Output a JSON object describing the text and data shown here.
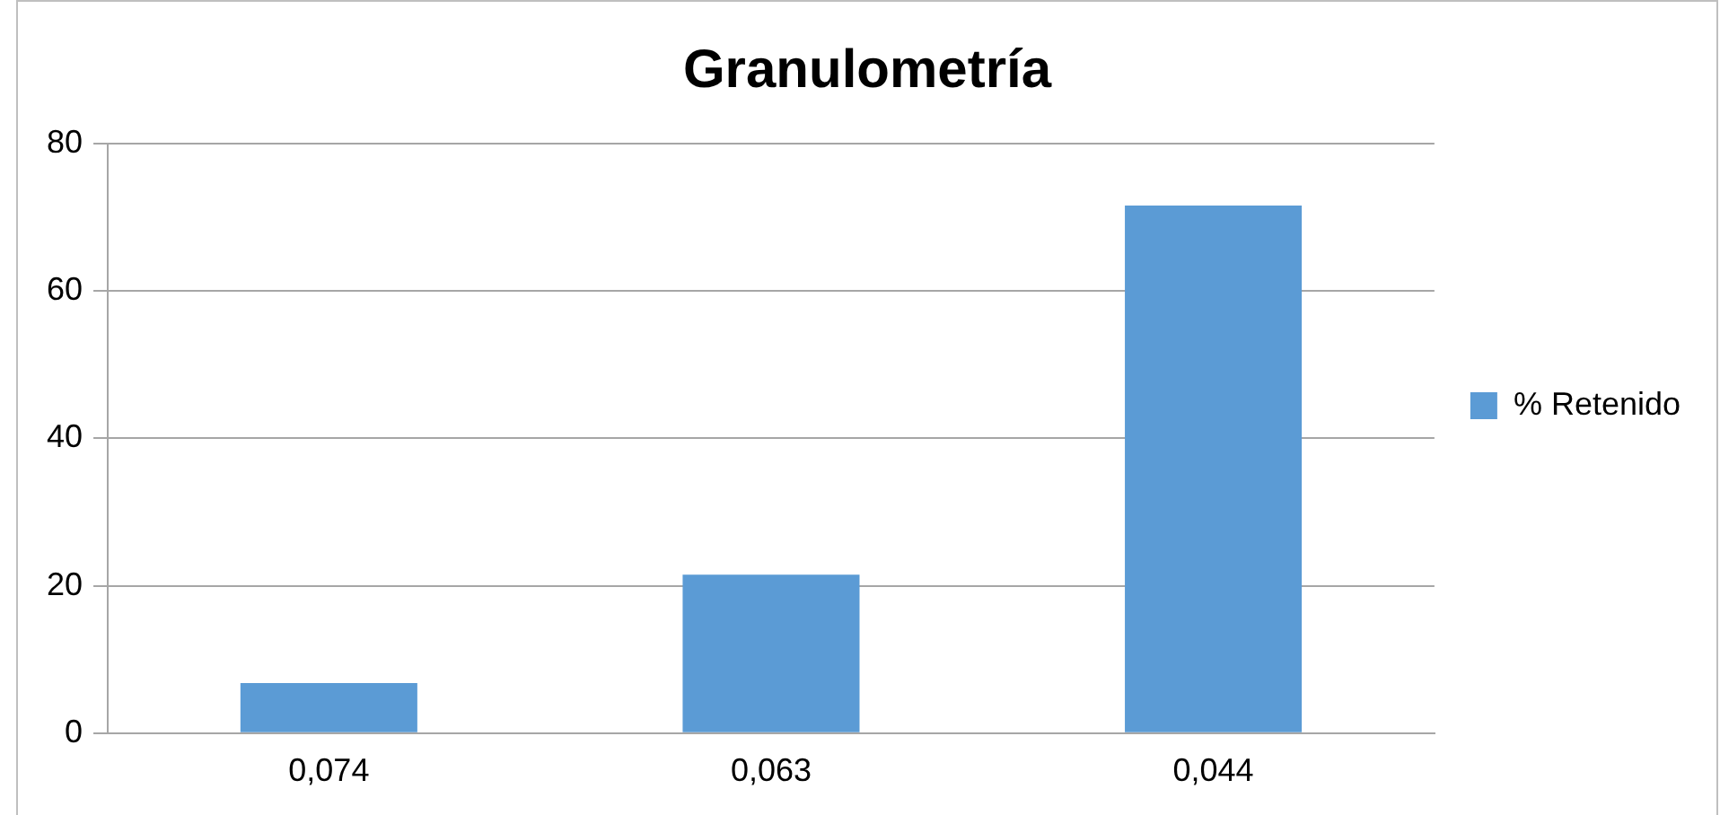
{
  "chart_data": {
    "type": "bar",
    "title": "Granulometría",
    "categories": [
      "0,074",
      "0,063",
      "0,044"
    ],
    "series": [
      {
        "name": "% Retenido",
        "color": "#5b9bd5",
        "values": [
          6.8,
          21.5,
          71.6
        ]
      }
    ],
    "ylim": [
      0,
      80
    ],
    "yticks": [
      0,
      20,
      40,
      60,
      80
    ],
    "grid": "y",
    "legend": "right"
  }
}
